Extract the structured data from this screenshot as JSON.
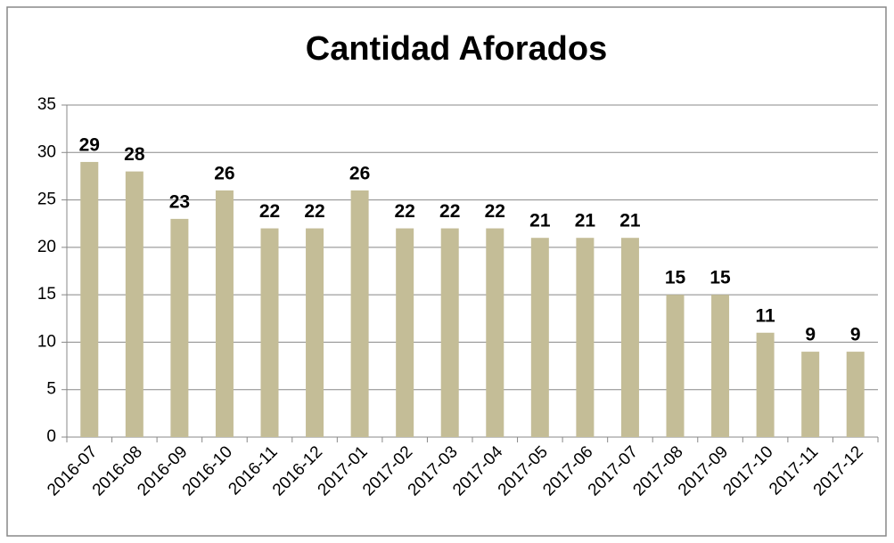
{
  "chart_data": {
    "type": "bar",
    "title": "Cantidad Aforados",
    "categories": [
      "2016-07",
      "2016-08",
      "2016-09",
      "2016-10",
      "2016-11",
      "2016-12",
      "2017-01",
      "2017-02",
      "2017-03",
      "2017-04",
      "2017-05",
      "2017-06",
      "2017-07",
      "2017-08",
      "2017-09",
      "2017-10",
      "2017-11",
      "2017-12"
    ],
    "values": [
      29,
      28,
      23,
      26,
      22,
      22,
      26,
      22,
      22,
      22,
      21,
      21,
      21,
      15,
      15,
      11,
      9,
      9
    ],
    "color": "#c4bd97",
    "ylim": [
      0,
      35
    ],
    "yticks": [
      0,
      5,
      10,
      15,
      20,
      25,
      30,
      35
    ],
    "grid": true
  }
}
